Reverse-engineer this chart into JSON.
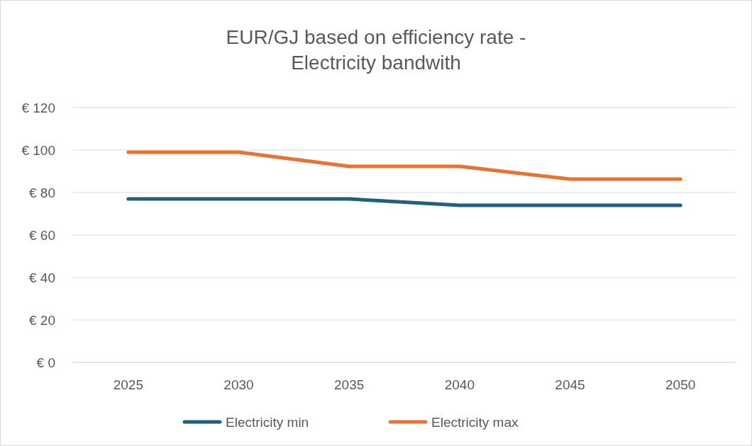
{
  "chart_data": {
    "type": "line",
    "title": "EUR/GJ based on efficiency rate -\nElectricity bandwith",
    "categories": [
      "2025",
      "2030",
      "2035",
      "2040",
      "2045",
      "2050"
    ],
    "series": [
      {
        "name": "Electricity min",
        "color": "#1f5f7f",
        "values": [
          77,
          77,
          77,
          74,
          74,
          74
        ]
      },
      {
        "name": "Electricity max",
        "color": "#e97132",
        "values": [
          99,
          99,
          92.3,
          92.3,
          86.3,
          86.3
        ]
      }
    ],
    "ylim": [
      0,
      120
    ],
    "yticks": [
      {
        "value": 0,
        "label": "€ 0"
      },
      {
        "value": 20,
        "label": "€ 20"
      },
      {
        "value": 40,
        "label": "€ 40"
      },
      {
        "value": 60,
        "label": "€ 60"
      },
      {
        "value": 80,
        "label": "€ 80"
      },
      {
        "value": 100,
        "label": "€ 100"
      },
      {
        "value": 120,
        "label": "€ 120"
      }
    ],
    "grid": "y",
    "legend": "bottom",
    "marker": "none",
    "line_style": "solid"
  }
}
